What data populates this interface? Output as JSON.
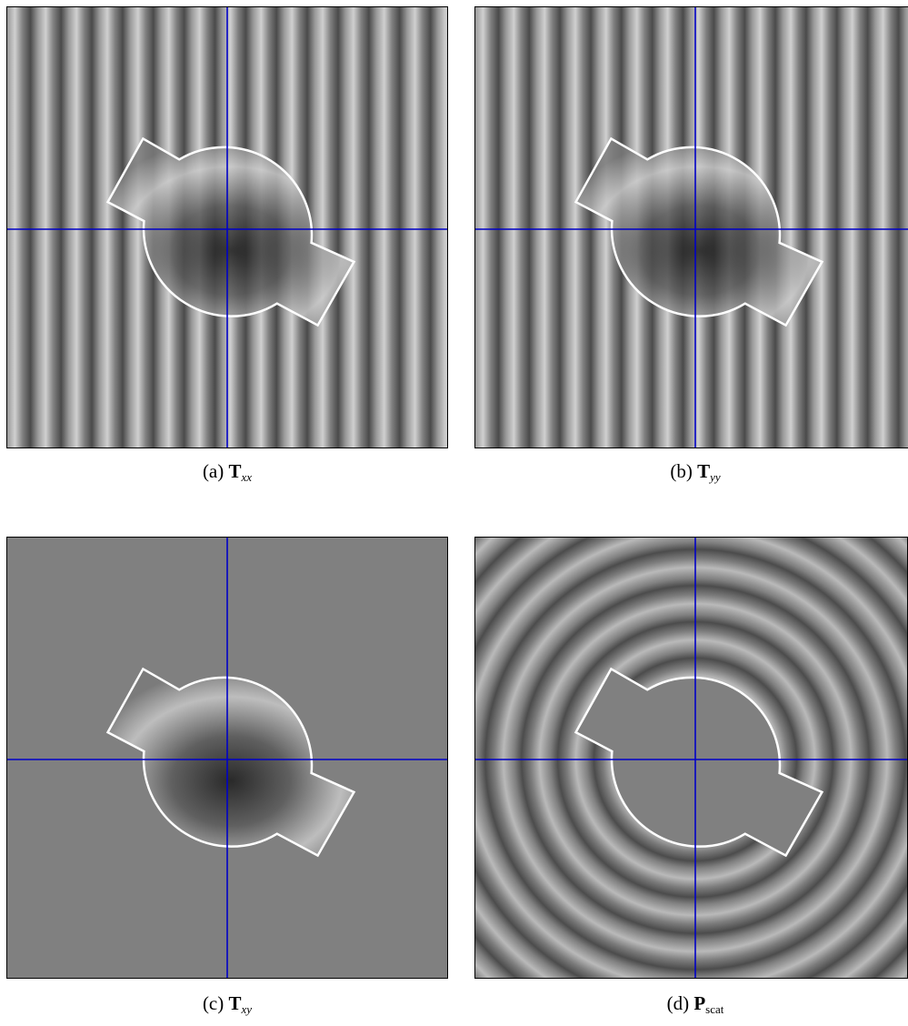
{
  "figure": {
    "panels": [
      {
        "label": "(a)",
        "symbol": "T",
        "subscript": "xx"
      },
      {
        "label": "(b)",
        "symbol": "T",
        "subscript": "yy"
      },
      {
        "label": "(c)",
        "symbol": "T",
        "subscript": "xy"
      },
      {
        "label": "(d)",
        "symbol": "P",
        "subscript": "scat"
      }
    ]
  }
}
